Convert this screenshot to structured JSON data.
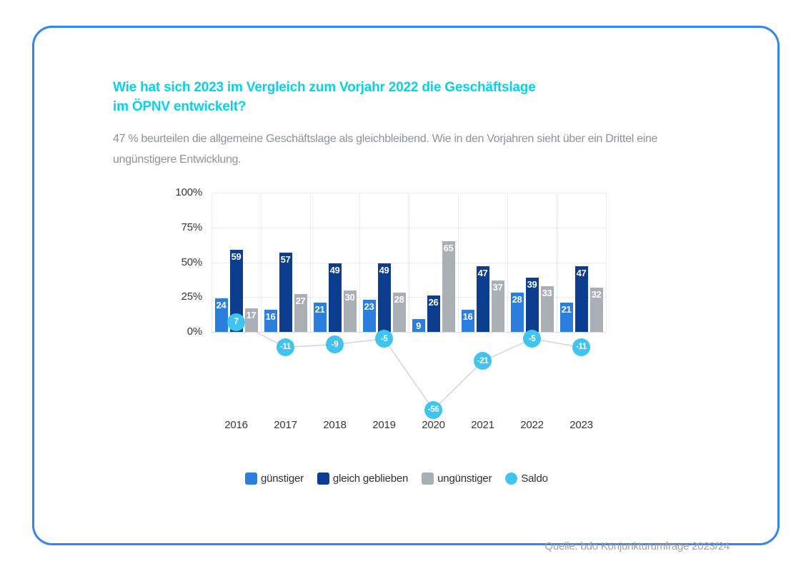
{
  "header": {
    "title_line1": "Wie hat sich 2023 im Vergleich zum Vorjahr 2022 die Geschäftslage",
    "title_line2": "im ÖPNV entwickelt?",
    "subtitle_line1": "47 % beurteilen die allgemeine Geschäftslage als gleichbleibend. Wie in den Vorjahren sieht über ein Drittel eine",
    "subtitle_line2": "ungünstigere Entwicklung."
  },
  "chart_data": {
    "type": "bar",
    "categories": [
      "2016",
      "2017",
      "2018",
      "2019",
      "2020",
      "2021",
      "2022",
      "2023"
    ],
    "series": [
      {
        "key": "guenstiger",
        "name": "günstiger",
        "color": "#2b7dde",
        "values": [
          24,
          16,
          21,
          23,
          9,
          16,
          28,
          21
        ]
      },
      {
        "key": "gleich-geblieben",
        "name": "gleich geblieben",
        "color": "#0d3d8f",
        "values": [
          59,
          57,
          49,
          49,
          26,
          47,
          39,
          47
        ]
      },
      {
        "key": "unguenstiger",
        "name": "ungünstiger",
        "color": "#aaafb5",
        "values": [
          17,
          27,
          30,
          28,
          65,
          37,
          33,
          32
        ]
      }
    ],
    "line_series": {
      "key": "saldo",
      "name": "Saldo",
      "color": "#3fc4f0",
      "values": [
        7,
        -11,
        -9,
        -5,
        -56,
        -21,
        -5,
        -11
      ]
    },
    "title": "",
    "xlabel": "",
    "ylabel": "",
    "ylim": [
      0,
      100
    ],
    "y_ticks": [
      {
        "value": 0,
        "label": "0%"
      },
      {
        "value": 25,
        "label": "25%"
      },
      {
        "value": 50,
        "label": "50%"
      },
      {
        "value": 75,
        "label": "75%"
      },
      {
        "value": 100,
        "label": "100%"
      }
    ],
    "grid": true,
    "legend_position": "bottom"
  },
  "footer": {
    "source": "Quelle: bdo Konjunkturumfrage 2023/24"
  },
  "colors": {
    "title": "#06d2e7",
    "border": "#2e86f0",
    "subtitle": "#8d939b",
    "grid": "#eaebed",
    "zero_line": "#d7d9db",
    "saldo_line": "#d2d6da",
    "axis_text": "#35363d",
    "source_text": "#99a0a8"
  }
}
